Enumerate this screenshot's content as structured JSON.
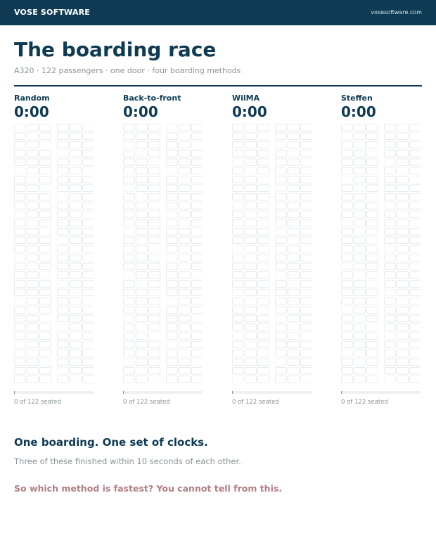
{
  "header": {
    "brand": "VOSE SOFTWARE",
    "url": "vosesoftware.com"
  },
  "title": "The boarding race",
  "subtitle": "A320 · 122 passengers · one door · four boarding methods",
  "panels": [
    {
      "label": "Random",
      "clock": "0:00",
      "status": "0 of 122 seated"
    },
    {
      "label": "Back-to-front",
      "clock": "0:00",
      "status": "0 of 122 seated"
    },
    {
      "label": "WilMA",
      "clock": "0:00",
      "status": "0 of 122 seated"
    },
    {
      "label": "Steffen",
      "clock": "0:00",
      "status": "0 of 122 seated"
    }
  ],
  "footer": {
    "heading": "One boarding. One set of clocks.",
    "note": "Three of these finished within 10 seconds of each other.",
    "question": "So which method is fastest? You cannot tell from this."
  }
}
